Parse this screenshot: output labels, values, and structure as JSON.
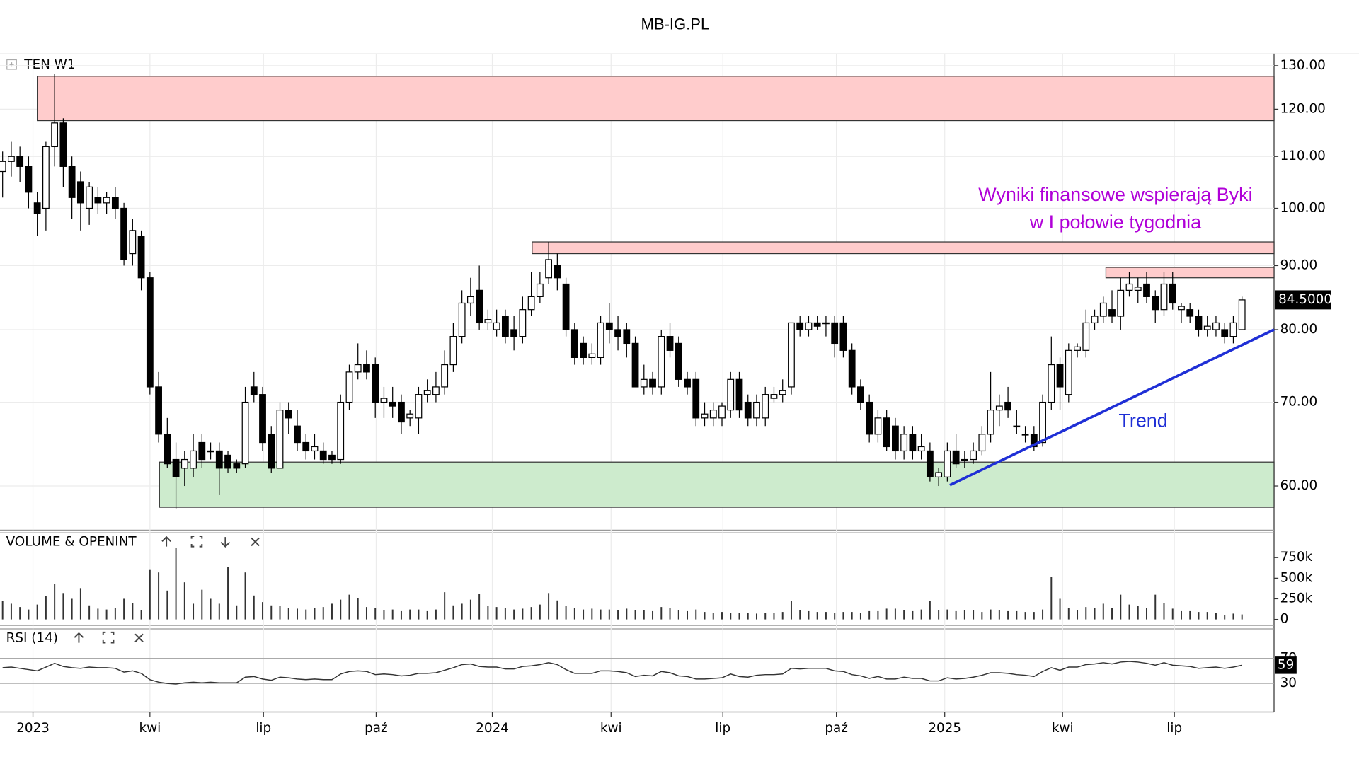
{
  "chart_data": [
    {
      "type": "candlestick",
      "title": "MB-IG.PL",
      "label": "TEN W1",
      "log_scale": true,
      "grid": true,
      "ylim": [
        55.5,
        132.9
      ],
      "yticks": [
        {
          "value": 60,
          "label": "60.00"
        },
        {
          "value": 70,
          "label": "70.00"
        },
        {
          "value": 80,
          "label": "80.00"
        },
        {
          "value": 90,
          "label": "90.00"
        },
        {
          "value": 100,
          "label": "100.00"
        },
        {
          "value": 110,
          "label": "110.00"
        },
        {
          "value": 120,
          "label": "120.00"
        },
        {
          "value": 130,
          "label": "130.00"
        }
      ],
      "xlim": [
        -0.3,
        146.7
      ],
      "xticks": [
        {
          "value": 3.5,
          "label": "2023"
        },
        {
          "value": 17,
          "label": "kwi"
        },
        {
          "value": 30.1,
          "label": "lip"
        },
        {
          "value": 43.1,
          "label": "paź"
        },
        {
          "value": 56.5,
          "label": "2024"
        },
        {
          "value": 70.2,
          "label": "kwi"
        },
        {
          "value": 83.1,
          "label": "lip"
        },
        {
          "value": 96.2,
          "label": "paź"
        },
        {
          "value": 108.7,
          "label": "2025"
        },
        {
          "value": 122.3,
          "label": "kwi"
        },
        {
          "value": 135.2,
          "label": "lip"
        }
      ],
      "candles": [
        [
          107,
          111,
          102,
          109
        ],
        [
          109,
          113,
          106,
          110
        ],
        [
          110,
          112,
          105,
          108
        ],
        [
          108,
          110,
          100,
          103
        ],
        [
          101,
          103,
          95,
          99
        ],
        [
          100,
          113,
          96,
          112
        ],
        [
          112,
          128,
          108,
          117
        ],
        [
          117,
          118,
          104,
          108
        ],
        [
          108,
          110,
          98,
          102
        ],
        [
          105,
          107,
          96,
          101
        ],
        [
          100,
          105,
          97,
          104
        ],
        [
          102,
          104,
          99,
          101
        ],
        [
          101,
          103,
          99,
          102
        ],
        [
          102,
          104,
          98,
          100
        ],
        [
          100,
          101,
          90,
          91
        ],
        [
          92,
          98,
          90,
          96
        ],
        [
          95,
          96,
          86,
          88
        ],
        [
          88,
          89,
          71,
          72
        ],
        [
          72,
          74,
          65,
          66
        ],
        [
          66,
          68,
          62,
          62.5
        ],
        [
          63,
          65,
          57.5,
          61
        ],
        [
          62,
          64,
          60,
          63
        ],
        [
          62,
          66,
          61,
          64
        ],
        [
          65,
          66,
          62,
          63
        ],
        [
          64,
          65,
          63,
          64
        ],
        [
          64,
          65,
          59,
          62
        ],
        [
          63.5,
          64,
          61.5,
          62
        ],
        [
          62.5,
          63,
          61.5,
          62
        ],
        [
          62.5,
          72,
          62,
          70
        ],
        [
          72,
          74,
          70,
          71
        ],
        [
          71,
          72,
          64,
          65
        ],
        [
          66,
          67,
          61.5,
          62
        ],
        [
          62,
          70,
          62,
          69
        ],
        [
          69,
          70,
          66,
          68
        ],
        [
          67,
          69,
          64,
          65
        ],
        [
          65,
          66,
          63,
          64
        ],
        [
          64,
          66,
          63,
          64.5
        ],
        [
          64,
          65,
          62.5,
          63
        ],
        [
          63.5,
          64,
          62.5,
          63
        ],
        [
          63,
          71,
          62.5,
          70
        ],
        [
          70,
          75,
          69,
          74
        ],
        [
          74,
          78,
          73,
          75
        ],
        [
          75,
          77,
          73,
          74
        ],
        [
          75,
          76,
          68,
          70
        ],
        [
          70,
          72,
          68,
          70.5
        ],
        [
          70,
          72,
          68,
          69.5
        ],
        [
          70,
          71,
          66,
          67.5
        ],
        [
          68,
          69,
          67,
          68.5
        ],
        [
          68,
          72,
          66,
          71
        ],
        [
          71,
          73,
          70,
          71.5
        ],
        [
          71,
          74,
          70,
          72
        ],
        [
          72,
          77,
          71,
          75
        ],
        [
          75,
          81,
          74,
          79
        ],
        [
          79,
          86,
          78,
          84
        ],
        [
          84,
          88,
          82,
          85
        ],
        [
          86,
          90,
          80,
          81
        ],
        [
          81,
          83,
          80,
          81.5
        ],
        [
          80,
          83,
          79,
          81
        ],
        [
          82,
          83,
          78,
          79
        ],
        [
          80,
          82,
          77,
          79
        ],
        [
          79,
          85,
          78,
          83
        ],
        [
          83,
          89,
          82,
          85
        ],
        [
          85,
          89,
          84,
          87
        ],
        [
          88,
          94,
          87,
          91
        ],
        [
          90,
          92,
          86,
          88
        ],
        [
          87,
          88,
          79,
          80
        ],
        [
          80,
          81,
          75,
          76
        ],
        [
          78,
          79,
          75,
          76
        ],
        [
          76,
          78,
          75,
          76.5
        ],
        [
          76,
          82,
          75,
          81
        ],
        [
          81,
          84,
          78,
          80
        ],
        [
          80,
          82,
          77,
          79
        ],
        [
          80,
          81,
          76,
          78
        ],
        [
          78,
          79,
          72,
          72
        ],
        [
          72,
          75,
          71,
          73
        ],
        [
          73,
          74,
          71,
          72
        ],
        [
          72,
          80,
          71,
          79
        ],
        [
          79,
          81,
          76,
          77
        ],
        [
          78,
          79,
          72,
          73
        ],
        [
          73,
          74,
          71,
          72
        ],
        [
          73,
          74,
          67,
          68
        ],
        [
          68,
          70,
          67,
          68.5
        ],
        [
          68,
          70,
          67,
          69
        ],
        [
          68,
          70,
          67,
          69.5
        ],
        [
          69,
          74,
          68,
          73
        ],
        [
          73,
          74,
          68,
          69
        ],
        [
          70,
          71,
          67,
          68
        ],
        [
          68,
          71,
          67,
          70
        ],
        [
          68,
          72,
          67,
          71
        ],
        [
          70.5,
          72,
          70,
          71
        ],
        [
          71,
          73,
          70,
          71.5
        ],
        [
          72,
          81,
          71,
          81
        ],
        [
          81,
          82,
          79,
          80
        ],
        [
          80,
          82,
          79,
          81
        ],
        [
          81,
          82,
          80,
          80.5
        ],
        [
          81,
          82,
          79,
          81
        ],
        [
          81,
          82,
          76,
          78
        ],
        [
          81,
          82,
          76,
          77
        ],
        [
          77,
          78,
          71,
          72
        ],
        [
          72,
          73,
          69,
          70
        ],
        [
          70,
          71,
          65,
          66
        ],
        [
          66,
          69,
          65,
          68
        ],
        [
          68,
          69,
          64,
          64.5
        ],
        [
          67,
          68,
          63,
          64
        ],
        [
          64,
          67,
          63,
          66
        ],
        [
          66,
          67,
          63,
          64
        ],
        [
          64,
          66,
          63,
          64.5
        ],
        [
          64,
          65,
          60.5,
          61
        ],
        [
          61,
          62,
          60,
          61.5
        ],
        [
          61,
          65,
          60.5,
          64
        ],
        [
          64,
          66,
          62,
          62.5
        ],
        [
          63,
          64,
          62,
          63
        ],
        [
          63,
          65,
          62.5,
          64
        ],
        [
          64,
          67,
          63.5,
          66
        ],
        [
          66,
          74,
          65,
          69
        ],
        [
          69,
          71,
          67,
          69.5
        ],
        [
          70,
          72,
          68,
          69
        ],
        [
          67,
          69,
          66,
          67
        ],
        [
          66,
          67,
          65,
          66
        ],
        [
          66,
          67,
          64,
          64.5
        ],
        [
          65,
          71,
          64.5,
          70
        ],
        [
          70,
          79,
          69,
          75
        ],
        [
          75,
          76,
          69,
          72
        ],
        [
          71,
          78,
          70,
          77
        ],
        [
          77,
          78,
          76,
          77.5
        ],
        [
          77,
          83,
          76,
          81
        ],
        [
          81,
          83,
          80,
          82
        ],
        [
          82,
          85,
          81,
          84
        ],
        [
          83,
          86,
          81,
          82
        ],
        [
          82,
          88,
          80,
          86
        ],
        [
          86,
          89,
          85,
          87
        ],
        [
          86,
          88,
          84,
          86.5
        ],
        [
          87,
          89,
          84,
          85
        ],
        [
          85,
          86,
          81,
          83
        ],
        [
          83,
          89,
          82,
          87
        ],
        [
          87,
          89,
          83,
          84
        ],
        [
          83,
          84,
          81,
          83.5
        ],
        [
          83,
          84,
          81,
          82
        ],
        [
          82,
          83,
          79,
          80
        ],
        [
          80,
          82,
          79,
          80.5
        ],
        [
          80,
          82,
          79,
          81
        ],
        [
          80,
          81,
          78,
          79
        ],
        [
          79,
          82,
          78,
          81
        ],
        [
          80,
          85,
          80,
          84.5
        ]
      ],
      "up_color": "#ffffff",
      "down_color": "#000000",
      "zones": [
        {
          "from": 4,
          "low": 117.5,
          "high": 127.5,
          "color": "#ffcccc"
        },
        {
          "from": 61.1,
          "low": 92,
          "high": 94,
          "color": "#ffcccc"
        },
        {
          "from": 127.3,
          "low": 88,
          "high": 89.7,
          "color": "#ffcccc"
        },
        {
          "from": 18.1,
          "low": 57.7,
          "high": 62.7,
          "color": "#cdebcd"
        }
      ],
      "trend": {
        "x": [
          109.3,
          146.7
        ],
        "y": [
          60.1,
          80
        ],
        "color": "#1f2fd6"
      },
      "annotations": [
        "Wyniki finansowe wspierają Byki",
        "w I połowie tygodnia",
        "Trend"
      ],
      "last_label": "84.5000"
    },
    {
      "type": "bar",
      "label": "VOLUME & OPENINT",
      "color": "#333333",
      "ylim": [
        -73000,
        1052000
      ],
      "yticks": [
        0,
        {
          "value": 250000,
          "label": "250k"
        },
        {
          "value": 500000,
          "label": "500k"
        },
        {
          "value": 750000,
          "label": "750k"
        }
      ],
      "values": [
        220000,
        190000,
        150000,
        120000,
        180000,
        280000,
        430000,
        320000,
        250000,
        380000,
        170000,
        130000,
        120000,
        140000,
        250000,
        200000,
        110000,
        600000,
        570000,
        350000,
        865000,
        450000,
        190000,
        360000,
        250000,
        190000,
        640000,
        170000,
        570000,
        290000,
        210000,
        170000,
        160000,
        140000,
        130000,
        120000,
        140000,
        150000,
        190000,
        240000,
        300000,
        260000,
        150000,
        140000,
        110000,
        120000,
        100000,
        120000,
        120000,
        100000,
        120000,
        330000,
        170000,
        190000,
        240000,
        310000,
        160000,
        150000,
        140000,
        120000,
        130000,
        150000,
        180000,
        320000,
        230000,
        160000,
        140000,
        120000,
        130000,
        120000,
        120000,
        110000,
        130000,
        110000,
        110000,
        100000,
        150000,
        140000,
        110000,
        100000,
        120000,
        90000,
        80000,
        90000,
        80000,
        80000,
        80000,
        70000,
        80000,
        80000,
        90000,
        220000,
        110000,
        100000,
        90000,
        90000,
        80000,
        90000,
        90000,
        80000,
        100000,
        100000,
        130000,
        130000,
        110000,
        100000,
        120000,
        220000,
        110000,
        120000,
        100000,
        110000,
        110000,
        90000,
        120000,
        110000,
        100000,
        100000,
        90000,
        90000,
        120000,
        520000,
        250000,
        140000,
        110000,
        150000,
        140000,
        190000,
        140000,
        300000,
        180000,
        160000,
        140000,
        300000,
        200000,
        130000,
        100000,
        100000,
        90000,
        90000,
        80000,
        50000,
        70000,
        60000
      ]
    },
    {
      "type": "line",
      "label": "RSI (14)",
      "color": "#333333",
      "ylim": [
        -12.8,
        116.9
      ],
      "yticks": [
        30,
        70
      ],
      "values": [
        55,
        56,
        54,
        52,
        50,
        56,
        62,
        57,
        55,
        54,
        56,
        55,
        55,
        54,
        48,
        50,
        46,
        36,
        32,
        30,
        29,
        31,
        32,
        31,
        32,
        31,
        31,
        31,
        40,
        41,
        37,
        35,
        40,
        39,
        37,
        36,
        37,
        36,
        36,
        45,
        49,
        50,
        49,
        44,
        45,
        44,
        42,
        43,
        46,
        46,
        47,
        51,
        55,
        60,
        61,
        57,
        56,
        56,
        53,
        53,
        57,
        58,
        60,
        63,
        60,
        52,
        46,
        46,
        46,
        50,
        50,
        49,
        47,
        41,
        43,
        42,
        49,
        47,
        42,
        41,
        37,
        37,
        38,
        39,
        45,
        41,
        40,
        43,
        44,
        44,
        45,
        54,
        53,
        54,
        54,
        54,
        50,
        49,
        44,
        42,
        38,
        41,
        37,
        37,
        40,
        38,
        38,
        34,
        34,
        39,
        37,
        38,
        40,
        43,
        47,
        47,
        46,
        44,
        43,
        41,
        49,
        55,
        51,
        56,
        56,
        60,
        61,
        63,
        61,
        64,
        65,
        64,
        62,
        59,
        63,
        59,
        58,
        57,
        54,
        55,
        56,
        54,
        56,
        59
      ]
    }
  ]
}
